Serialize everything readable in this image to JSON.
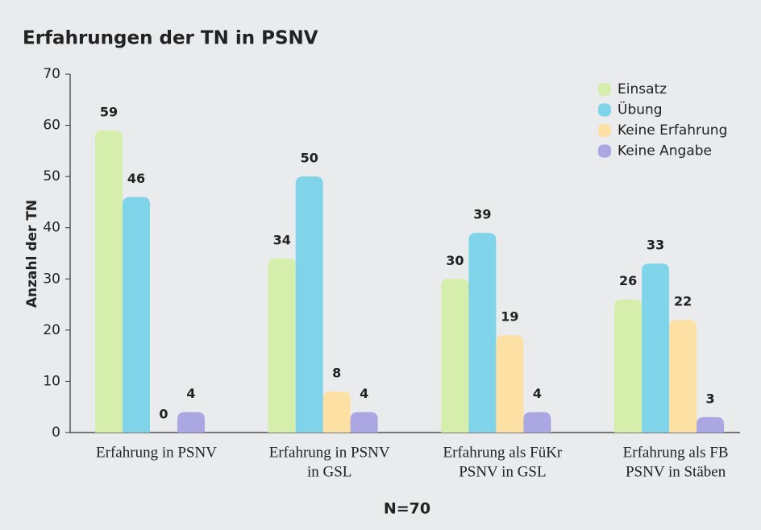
{
  "chart_data": {
    "type": "bar",
    "title": "Erfahrungen der TN in PSNV",
    "ylabel": "Anzahl der TN",
    "note": "N=70",
    "categories": [
      [
        "Erfahrung in PSNV"
      ],
      [
        "Erfahrung in PSNV",
        "in GSL"
      ],
      [
        "Erfahrung als FüKr",
        "PSNV in GSL"
      ],
      [
        "Erfahrung als FB",
        "PSNV in Stäben"
      ]
    ],
    "series": [
      {
        "name": "Einsatz",
        "color": "#d5eeab",
        "values": [
          59,
          34,
          30,
          26
        ]
      },
      {
        "name": "Übung",
        "color": "#7fd4e9",
        "values": [
          46,
          50,
          39,
          33
        ]
      },
      {
        "name": "Keine Erfahrung",
        "color": "#fde1a4",
        "values": [
          0,
          8,
          19,
          22
        ]
      },
      {
        "name": "Keine Angabe",
        "color": "#aaa7e3",
        "values": [
          4,
          4,
          4,
          3
        ]
      }
    ],
    "ylim": [
      0,
      70
    ],
    "yticks": [
      0,
      10,
      20,
      30,
      40,
      50,
      60,
      70
    ],
    "grid": false,
    "legend": "upper right"
  }
}
